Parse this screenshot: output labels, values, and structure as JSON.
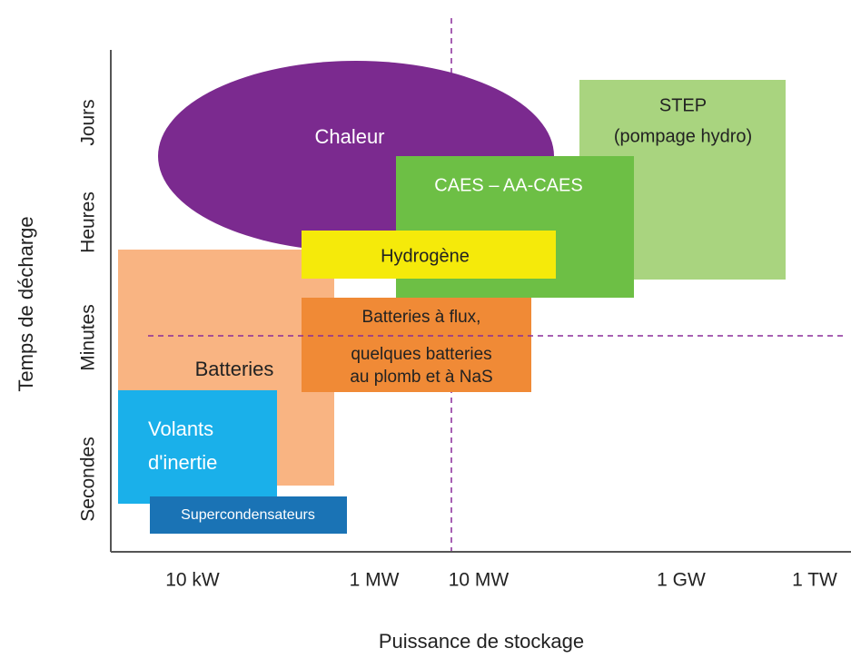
{
  "axes": {
    "y_label": "Temps de décharge",
    "x_label": "Puissance de stockage",
    "y_ticks": [
      "Jours",
      "Heures",
      "Minutes",
      "Secondes"
    ],
    "x_ticks": [
      "10 kW",
      "1 MW",
      "10 MW",
      "1 GW",
      "1 TW"
    ]
  },
  "regions": [
    {
      "lines": [
        "Chaleur"
      ]
    },
    {
      "lines": [
        "STEP",
        "(pompage hydro)"
      ]
    },
    {
      "lines": [
        "CAES – AA-CAES"
      ]
    },
    {
      "lines": [
        "Hydrogène"
      ]
    },
    {
      "lines": [
        "Batteries à flux,",
        "quelques batteries",
        "au plomb et à NaS"
      ]
    },
    {
      "lines": [
        "Batteries"
      ]
    },
    {
      "lines": [
        "Volants",
        "d'inertie"
      ]
    },
    {
      "lines": [
        "Supercondensateurs"
      ]
    }
  ]
}
